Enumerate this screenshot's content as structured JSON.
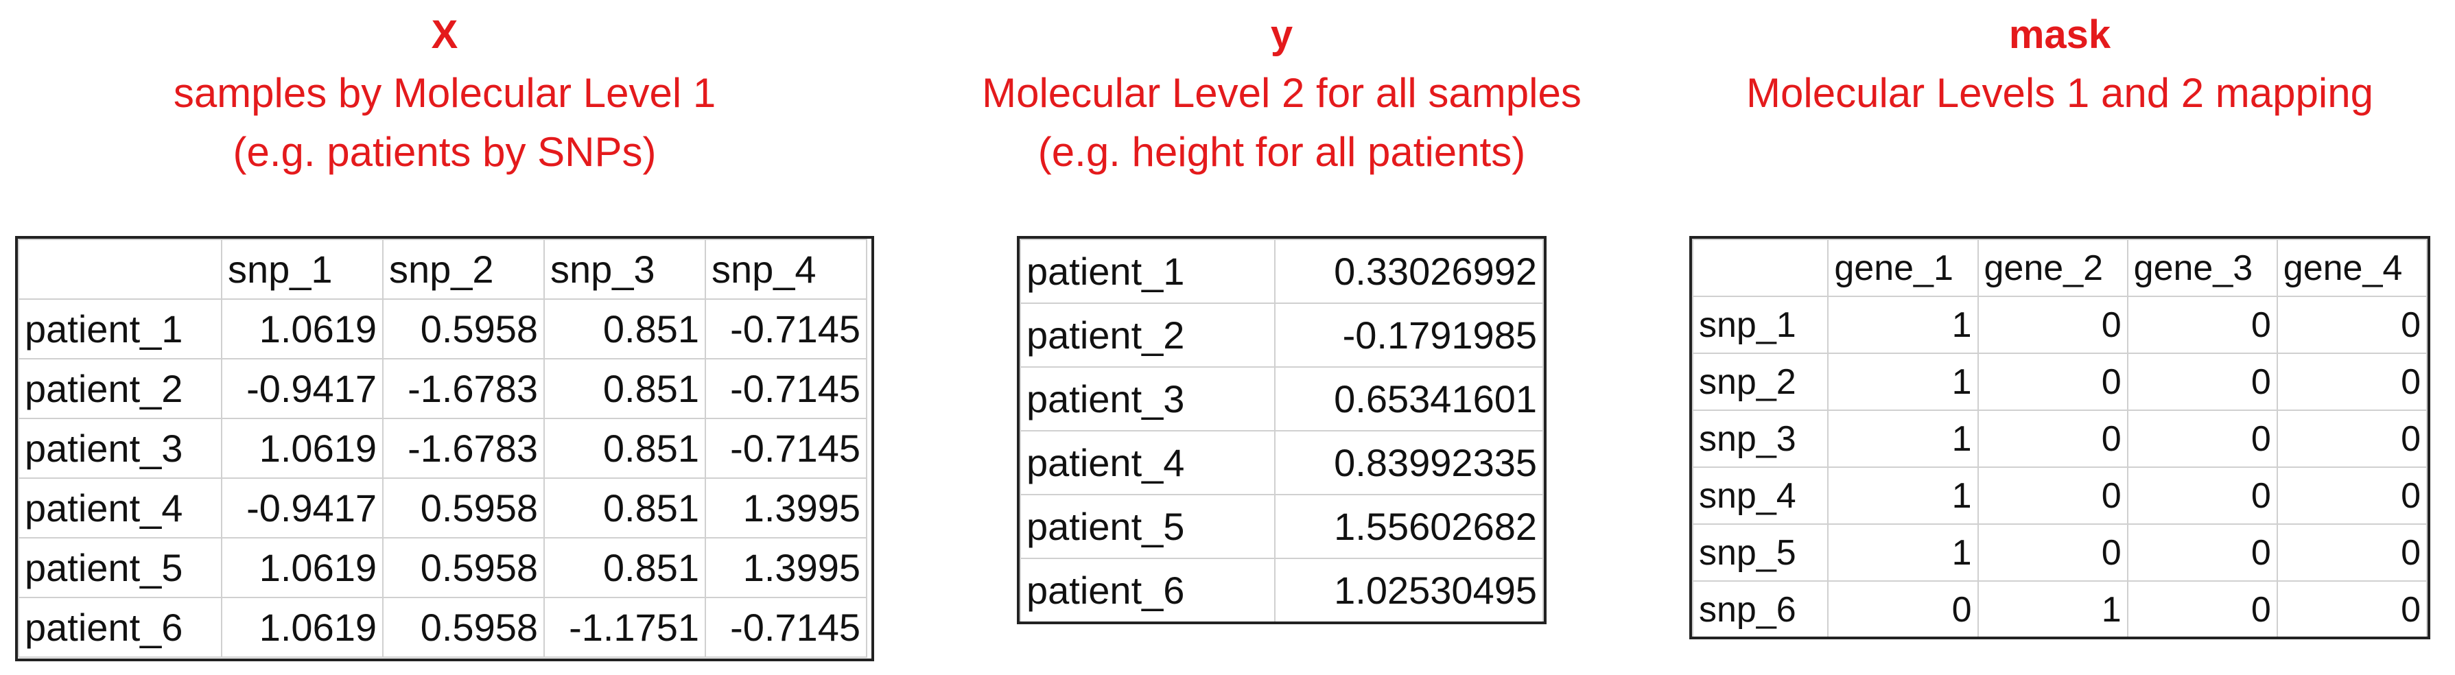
{
  "panels": {
    "x": {
      "name": "X",
      "line1": "samples by Molecular Level 1",
      "line2": "(e.g. patients by SNPs)",
      "columns": [
        "",
        "snp_1",
        "snp_2",
        "snp_3",
        "snp_4"
      ],
      "rows": [
        {
          "label": "patient_1",
          "values": [
            "1.0619",
            "0.5958",
            "0.851",
            "-0.7145"
          ]
        },
        {
          "label": "patient_2",
          "values": [
            "-0.9417",
            "-1.6783",
            "0.851",
            "-0.7145"
          ]
        },
        {
          "label": "patient_3",
          "values": [
            "1.0619",
            "-1.6783",
            "0.851",
            "-0.7145"
          ]
        },
        {
          "label": "patient_4",
          "values": [
            "-0.9417",
            "0.5958",
            "0.851",
            "1.3995"
          ]
        },
        {
          "label": "patient_5",
          "values": [
            "1.0619",
            "0.5958",
            "0.851",
            "1.3995"
          ]
        },
        {
          "label": "patient_6",
          "values": [
            "1.0619",
            "0.5958",
            "-1.1751",
            "-0.7145"
          ]
        }
      ]
    },
    "y": {
      "name": "y",
      "line1": "Molecular Level 2 for all samples",
      "line2": "(e.g. height for all patients)",
      "rows": [
        {
          "label": "patient_1",
          "value": "0.33026992"
        },
        {
          "label": "patient_2",
          "value": "-0.1791985"
        },
        {
          "label": "patient_3",
          "value": "0.65341601"
        },
        {
          "label": "patient_4",
          "value": "0.83992335"
        },
        {
          "label": "patient_5",
          "value": "1.55602682"
        },
        {
          "label": "patient_6",
          "value": "1.02530495"
        }
      ]
    },
    "mask": {
      "name": "mask",
      "line1": "Molecular Levels 1 and 2 mapping",
      "columns": [
        "",
        "gene_1",
        "gene_2",
        "gene_3",
        "gene_4"
      ],
      "rows": [
        {
          "label": "snp_1",
          "values": [
            "1",
            "0",
            "0",
            "0"
          ]
        },
        {
          "label": "snp_2",
          "values": [
            "1",
            "0",
            "0",
            "0"
          ]
        },
        {
          "label": "snp_3",
          "values": [
            "1",
            "0",
            "0",
            "0"
          ]
        },
        {
          "label": "snp_4",
          "values": [
            "1",
            "0",
            "0",
            "0"
          ]
        },
        {
          "label": "snp_5",
          "values": [
            "1",
            "0",
            "0",
            "0"
          ]
        },
        {
          "label": "snp_6",
          "values": [
            "0",
            "1",
            "0",
            "0"
          ]
        }
      ]
    }
  },
  "colors": {
    "title": "#e41a1c",
    "table_border": "#222222",
    "gridline": "#d0d0d0"
  }
}
